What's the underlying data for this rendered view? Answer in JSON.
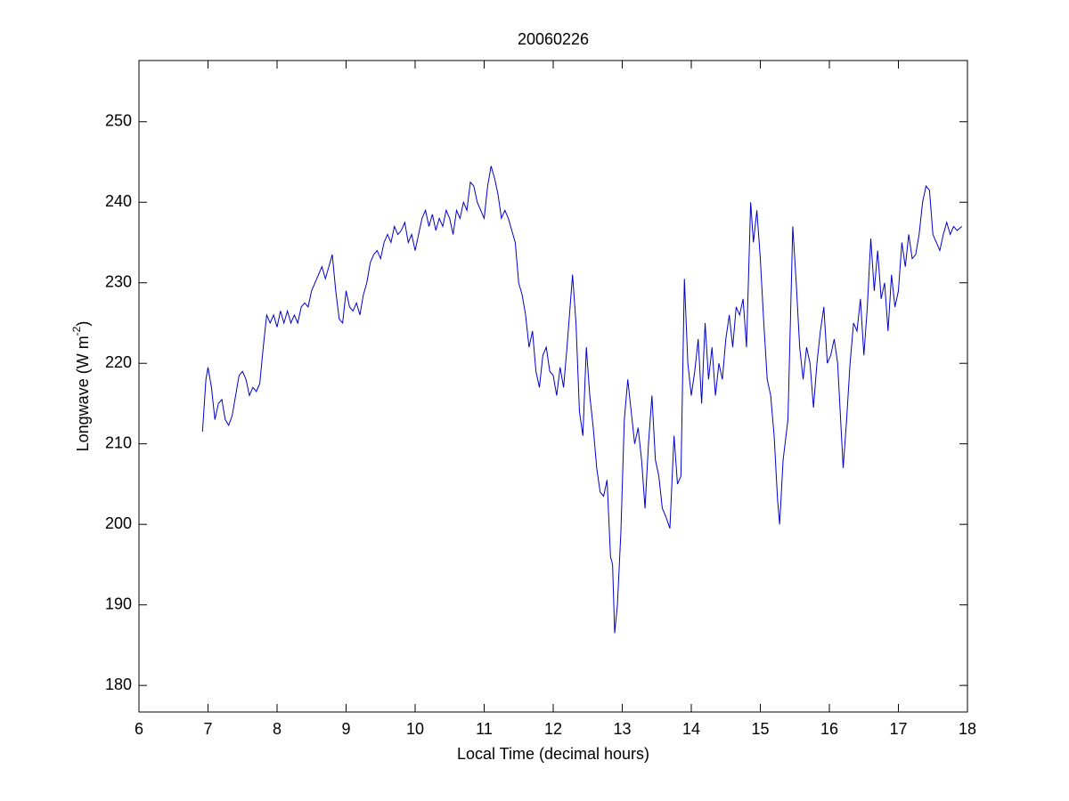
{
  "chart_data": {
    "type": "line",
    "title": "20060226",
    "xlabel": "Local Time (decimal hours)",
    "ylabel": [
      "Longwave (W m",
      "-2",
      ")"
    ],
    "xlim": [
      6,
      18
    ],
    "ylim": [
      176.7,
      257.6
    ],
    "xticks": [
      6,
      7,
      8,
      9,
      10,
      11,
      12,
      13,
      14,
      15,
      16,
      17,
      18
    ],
    "yticks": [
      180,
      190,
      200,
      210,
      220,
      230,
      240,
      250
    ],
    "grid": false,
    "series": [
      {
        "color": "#0000cc",
        "x": [
          6.92,
          6.97,
          7.0,
          7.05,
          7.1,
          7.15,
          7.2,
          7.25,
          7.3,
          7.35,
          7.4,
          7.45,
          7.5,
          7.55,
          7.6,
          7.65,
          7.7,
          7.75,
          7.8,
          7.85,
          7.9,
          7.95,
          8.0,
          8.05,
          8.1,
          8.15,
          8.2,
          8.25,
          8.3,
          8.35,
          8.4,
          8.45,
          8.5,
          8.55,
          8.6,
          8.65,
          8.7,
          8.75,
          8.8,
          8.85,
          8.9,
          8.95,
          9.0,
          9.05,
          9.1,
          9.15,
          9.2,
          9.25,
          9.3,
          9.35,
          9.4,
          9.45,
          9.5,
          9.55,
          9.6,
          9.65,
          9.7,
          9.75,
          9.8,
          9.85,
          9.9,
          9.95,
          10.0,
          10.05,
          10.1,
          10.15,
          10.2,
          10.25,
          10.3,
          10.35,
          10.4,
          10.45,
          10.5,
          10.55,
          10.6,
          10.65,
          10.7,
          10.75,
          10.8,
          10.85,
          10.9,
          10.95,
          11.0,
          11.05,
          11.1,
          11.15,
          11.2,
          11.25,
          11.3,
          11.35,
          11.4,
          11.45,
          11.5,
          11.55,
          11.6,
          11.65,
          11.7,
          11.75,
          11.8,
          11.85,
          11.9,
          11.95,
          12.0,
          12.05,
          12.1,
          12.15,
          12.2,
          12.28,
          12.33,
          12.38,
          12.43,
          12.48,
          12.53,
          12.58,
          12.63,
          12.68,
          12.73,
          12.78,
          12.83,
          12.86,
          12.89,
          12.93,
          12.98,
          13.03,
          13.08,
          13.13,
          13.18,
          13.23,
          13.28,
          13.33,
          13.38,
          13.43,
          13.48,
          13.53,
          13.58,
          13.63,
          13.69,
          13.75,
          13.8,
          13.85,
          13.9,
          13.95,
          14.0,
          14.05,
          14.1,
          14.15,
          14.2,
          14.25,
          14.3,
          14.35,
          14.4,
          14.45,
          14.5,
          14.55,
          14.6,
          14.65,
          14.7,
          14.75,
          14.8,
          14.86,
          14.9,
          14.95,
          15.0,
          15.05,
          15.1,
          15.15,
          15.2,
          15.25,
          15.28,
          15.33,
          15.4,
          15.47,
          15.52,
          15.57,
          15.62,
          15.67,
          15.72,
          15.77,
          15.82,
          15.87,
          15.92,
          15.97,
          16.02,
          16.07,
          16.12,
          16.2,
          16.25,
          16.3,
          16.35,
          16.4,
          16.45,
          16.5,
          16.55,
          16.6,
          16.65,
          16.7,
          16.75,
          16.8,
          16.85,
          16.9,
          16.95,
          17.0,
          17.05,
          17.1,
          17.15,
          17.2,
          17.25,
          17.3,
          17.35,
          17.4,
          17.45,
          17.5,
          17.55,
          17.6,
          17.65,
          17.7,
          17.75,
          17.8,
          17.85,
          17.92
        ],
        "values": [
          211.5,
          218,
          219.5,
          217,
          213,
          215,
          215.5,
          213,
          212.3,
          213.5,
          216,
          218.5,
          219,
          218,
          216,
          217,
          216.5,
          217.5,
          222,
          226,
          225,
          226,
          224.5,
          226.5,
          225,
          226.5,
          225,
          226,
          225,
          227,
          227.5,
          227,
          229,
          230,
          231,
          232,
          230.5,
          232,
          233.5,
          229,
          225.5,
          225,
          229,
          227,
          226.5,
          227.5,
          226,
          228.5,
          230,
          232.5,
          233.5,
          234,
          233,
          235,
          236,
          235,
          237,
          236,
          236.5,
          237.5,
          235,
          236,
          234,
          236,
          238,
          239,
          237,
          238.5,
          236.5,
          238,
          237,
          239,
          238,
          236,
          239,
          238,
          240,
          239,
          242.5,
          242,
          240,
          239,
          238,
          242,
          244.5,
          243,
          241,
          238,
          239,
          238,
          236.5,
          235,
          230,
          228.5,
          226,
          222,
          224,
          219,
          217,
          221,
          222,
          219,
          218.5,
          216,
          219.5,
          217,
          222,
          231,
          225,
          214,
          211,
          222,
          216,
          212,
          207,
          204,
          203.5,
          205.5,
          196,
          195,
          186.5,
          190,
          199,
          213,
          218,
          214,
          210,
          212,
          208,
          202,
          210,
          216,
          208,
          206,
          202,
          201,
          199.5,
          211,
          205,
          206,
          230.5,
          220,
          216,
          219,
          223,
          215,
          225,
          218,
          222,
          216,
          220,
          218,
          223,
          226,
          222,
          227,
          226,
          228,
          222,
          240,
          235,
          239,
          233,
          225,
          218,
          216,
          211,
          203,
          200,
          208,
          213,
          237,
          230,
          222,
          218,
          222,
          220,
          214.5,
          220,
          224,
          227,
          220,
          221,
          223,
          220,
          207,
          213,
          220,
          225,
          224,
          228,
          221,
          227,
          235.5,
          229,
          234,
          228,
          230,
          224,
          231,
          227,
          229,
          235,
          232,
          236,
          233,
          233.5,
          236,
          240,
          242,
          241.5,
          236,
          235,
          234,
          236,
          237.5,
          236,
          237,
          236.5,
          237
        ]
      }
    ]
  }
}
